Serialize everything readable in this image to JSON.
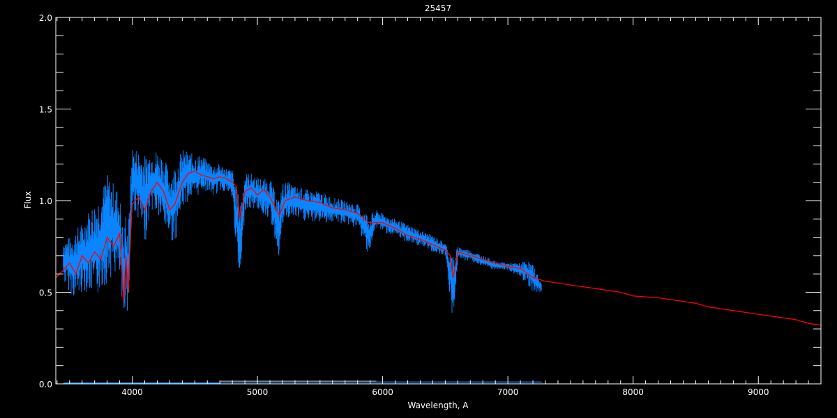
{
  "chart_data": {
    "type": "line",
    "title": "25457",
    "xlabel": "Wavelength, A",
    "ylabel": "Flux",
    "xlim": [
      3390,
      9500
    ],
    "ylim": [
      0,
      2.0
    ],
    "xticks": [
      4000,
      5000,
      6000,
      7000,
      8000,
      9000
    ],
    "xtick_labels": [
      "4000",
      "5000",
      "6000",
      "7000",
      "8000",
      "9000"
    ],
    "xminor_step": 100,
    "yticks": [
      0.0,
      0.5,
      1.0,
      1.5,
      2.0
    ],
    "ytick_labels": [
      "0.0",
      "0.5",
      "1.0",
      "1.5",
      "2.0"
    ],
    "yminor_step": 0.1,
    "grid": false,
    "background": "#000000",
    "series": [
      {
        "color": "#0a84ff",
        "style": "observed spectrum band [wavelength, min flux, max flux]",
        "values": [
          [
            3450,
            0.55,
            0.8
          ],
          [
            3500,
            0.5,
            0.8
          ],
          [
            3550,
            0.45,
            0.85
          ],
          [
            3600,
            0.5,
            0.88
          ],
          [
            3650,
            0.5,
            0.95
          ],
          [
            3700,
            0.45,
            1.0
          ],
          [
            3750,
            0.5,
            1.05
          ],
          [
            3800,
            0.55,
            1.15
          ],
          [
            3850,
            0.6,
            1.1
          ],
          [
            3900,
            0.55,
            1.05
          ],
          [
            3933,
            0.27,
            0.8
          ],
          [
            3950,
            0.55,
            0.95
          ],
          [
            3968,
            0.28,
            0.85
          ],
          [
            3985,
            0.7,
            1.1
          ],
          [
            4000,
            0.95,
            1.3
          ],
          [
            4050,
            0.9,
            1.28
          ],
          [
            4100,
            0.75,
            1.25
          ],
          [
            4150,
            0.95,
            1.27
          ],
          [
            4200,
            0.9,
            1.28
          ],
          [
            4250,
            0.85,
            1.25
          ],
          [
            4300,
            0.8,
            1.15
          ],
          [
            4340,
            0.75,
            1.2
          ],
          [
            4400,
            0.95,
            1.28
          ],
          [
            4450,
            1.0,
            1.27
          ],
          [
            4500,
            1.0,
            1.25
          ],
          [
            4550,
            1.05,
            1.25
          ],
          [
            4600,
            1.05,
            1.22
          ],
          [
            4650,
            1.02,
            1.2
          ],
          [
            4700,
            1.05,
            1.2
          ],
          [
            4750,
            1.05,
            1.18
          ],
          [
            4800,
            1.0,
            1.17
          ],
          [
            4861,
            0.47,
            1.0
          ],
          [
            4900,
            0.95,
            1.15
          ],
          [
            4950,
            0.95,
            1.15
          ],
          [
            5000,
            0.95,
            1.13
          ],
          [
            5050,
            0.92,
            1.12
          ],
          [
            5100,
            0.9,
            1.12
          ],
          [
            5175,
            0.68,
            1.0
          ],
          [
            5200,
            0.85,
            1.1
          ],
          [
            5250,
            0.9,
            1.1
          ],
          [
            5300,
            0.9,
            1.08
          ],
          [
            5400,
            0.88,
            1.06
          ],
          [
            5500,
            0.88,
            1.05
          ],
          [
            5600,
            0.88,
            1.02
          ],
          [
            5700,
            0.87,
            1.0
          ],
          [
            5800,
            0.85,
            0.98
          ],
          [
            5893,
            0.7,
            0.92
          ],
          [
            5950,
            0.85,
            0.95
          ],
          [
            6000,
            0.83,
            0.93
          ],
          [
            6100,
            0.8,
            0.9
          ],
          [
            6200,
            0.77,
            0.87
          ],
          [
            6300,
            0.75,
            0.84
          ],
          [
            6400,
            0.72,
            0.81
          ],
          [
            6500,
            0.7,
            0.77
          ],
          [
            6563,
            0.31,
            0.7
          ],
          [
            6600,
            0.68,
            0.75
          ],
          [
            6700,
            0.67,
            0.73
          ],
          [
            6800,
            0.64,
            0.7
          ],
          [
            6900,
            0.62,
            0.67
          ],
          [
            7000,
            0.62,
            0.66
          ],
          [
            7100,
            0.58,
            0.66
          ],
          [
            7150,
            0.55,
            0.68
          ],
          [
            7200,
            0.5,
            0.65
          ],
          [
            7270,
            0.5,
            0.55
          ]
        ]
      },
      {
        "color": "#ff0000",
        "style": "model spectrum [wavelength, flux]",
        "values": [
          [
            3390,
            0.58
          ],
          [
            3450,
            0.62
          ],
          [
            3500,
            0.66
          ],
          [
            3550,
            0.6
          ],
          [
            3600,
            0.7
          ],
          [
            3650,
            0.66
          ],
          [
            3700,
            0.72
          ],
          [
            3750,
            0.68
          ],
          [
            3800,
            0.8
          ],
          [
            3850,
            0.75
          ],
          [
            3900,
            0.82
          ],
          [
            3933,
            0.45
          ],
          [
            3950,
            0.7
          ],
          [
            3968,
            0.5
          ],
          [
            3990,
            0.85
          ],
          [
            4000,
            0.98
          ],
          [
            4050,
            1.02
          ],
          [
            4100,
            0.95
          ],
          [
            4150,
            1.05
          ],
          [
            4200,
            1.1
          ],
          [
            4250,
            1.05
          ],
          [
            4300,
            0.95
          ],
          [
            4340,
            0.98
          ],
          [
            4400,
            1.1
          ],
          [
            4450,
            1.15
          ],
          [
            4500,
            1.16
          ],
          [
            4550,
            1.14
          ],
          [
            4600,
            1.13
          ],
          [
            4650,
            1.12
          ],
          [
            4700,
            1.13
          ],
          [
            4750,
            1.12
          ],
          [
            4800,
            1.1
          ],
          [
            4830,
            1.08
          ],
          [
            4861,
            0.9
          ],
          [
            4900,
            1.05
          ],
          [
            4950,
            1.07
          ],
          [
            5000,
            1.03
          ],
          [
            5050,
            1.06
          ],
          [
            5100,
            1.02
          ],
          [
            5175,
            0.92
          ],
          [
            5220,
            1.0
          ],
          [
            5300,
            1.02
          ],
          [
            5400,
            1.0
          ],
          [
            5500,
            0.99
          ],
          [
            5600,
            0.96
          ],
          [
            5700,
            0.95
          ],
          [
            5800,
            0.93
          ],
          [
            5893,
            0.88
          ],
          [
            6000,
            0.88
          ],
          [
            6100,
            0.85
          ],
          [
            6200,
            0.81
          ],
          [
            6300,
            0.79
          ],
          [
            6400,
            0.76
          ],
          [
            6500,
            0.73
          ],
          [
            6540,
            0.7
          ],
          [
            6563,
            0.58
          ],
          [
            6600,
            0.72
          ],
          [
            6700,
            0.7
          ],
          [
            6800,
            0.68
          ],
          [
            6900,
            0.66
          ],
          [
            7000,
            0.64
          ],
          [
            7100,
            0.63
          ],
          [
            7200,
            0.58
          ],
          [
            7300,
            0.56
          ],
          [
            7400,
            0.55
          ],
          [
            7500,
            0.54
          ],
          [
            7700,
            0.52
          ],
          [
            7900,
            0.5
          ],
          [
            8000,
            0.48
          ],
          [
            8200,
            0.47
          ],
          [
            8400,
            0.45
          ],
          [
            8500,
            0.44
          ],
          [
            8600,
            0.42
          ],
          [
            8700,
            0.41
          ],
          [
            8800,
            0.4
          ],
          [
            9000,
            0.38
          ],
          [
            9100,
            0.37
          ],
          [
            9200,
            0.36
          ],
          [
            9300,
            0.35
          ],
          [
            9400,
            0.33
          ],
          [
            9500,
            0.32
          ]
        ]
      },
      {
        "color": "#0a84ff",
        "style": "error spectrum [wavelength, flux]",
        "values": [
          [
            3450,
            0.005
          ],
          [
            4700,
            0.005
          ],
          [
            4700,
            0.01
          ],
          [
            7270,
            0.01
          ]
        ]
      },
      {
        "color": "#808080",
        "style": "faint line [wavelength, flux]",
        "values": [
          [
            4700,
            0.015
          ],
          [
            5950,
            0.015
          ]
        ]
      }
    ]
  }
}
